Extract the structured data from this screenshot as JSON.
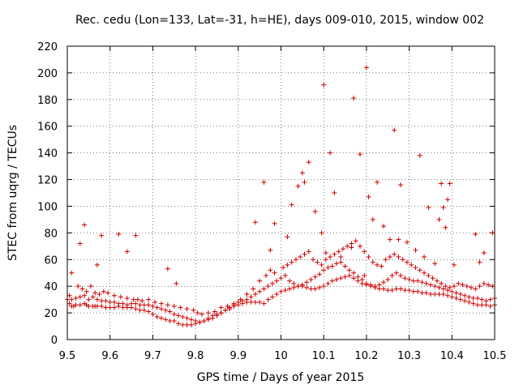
{
  "chart_data": {
    "type": "scatter",
    "title": "Rec. cedu (Lon=133, Lat=-31, h=HE), days 009-010, 2015, window 002",
    "xlabel": "GPS time / Days of year 2015",
    "ylabel": "STEC from uqrg / TECUs",
    "xlim": [
      9.5,
      10.5
    ],
    "ylim": [
      0,
      220
    ],
    "xticks": [
      9.5,
      9.6,
      9.7,
      9.8,
      9.9,
      10,
      10.1,
      10.2,
      10.3,
      10.4,
      10.5
    ],
    "xtick_labels": [
      "9.5",
      "9.6",
      "9.7",
      "9.8",
      "9.9",
      "10",
      "10.1",
      "10.2",
      "10.3",
      "10.4",
      "10.5"
    ],
    "yticks": [
      0,
      20,
      40,
      60,
      80,
      100,
      120,
      140,
      160,
      180,
      200,
      220
    ],
    "ytick_labels": [
      "0",
      "20",
      "40",
      "60",
      "80",
      "100",
      "120",
      "140",
      "160",
      "180",
      "200",
      "220"
    ],
    "grid": true,
    "marker": "+",
    "color": "#cc0000",
    "series": [
      {
        "name": "STEC",
        "x": [
          9.5,
          9.505,
          9.51,
          9.515,
          9.52,
          9.53,
          9.54,
          9.545,
          9.55,
          9.56,
          9.565,
          9.57,
          9.58,
          9.59,
          9.6,
          9.61,
          9.62,
          9.63,
          9.64,
          9.65,
          9.66,
          9.67,
          9.68,
          9.69,
          9.7,
          9.71,
          9.72,
          9.73,
          9.74,
          9.75,
          9.76,
          9.77,
          9.78,
          9.79,
          9.8,
          9.81,
          9.82,
          9.83,
          9.84,
          9.85,
          9.86,
          9.87,
          9.88,
          9.89,
          9.9,
          9.91,
          9.92,
          9.93,
          9.94,
          9.95,
          9.96,
          9.97,
          9.98,
          9.99,
          10.0,
          10.01,
          10.02,
          10.03,
          10.04,
          10.05,
          10.06,
          10.07,
          10.08,
          10.09,
          10.1,
          10.11,
          10.12,
          10.13,
          10.14,
          10.15,
          10.16,
          10.17,
          10.18,
          10.19,
          10.2,
          10.21,
          10.22,
          10.23,
          10.24,
          10.25,
          10.26,
          10.27,
          10.28,
          10.29,
          10.3,
          10.31,
          10.32,
          10.33,
          10.34,
          10.35,
          10.36,
          10.37,
          10.38,
          10.39,
          10.4,
          10.41,
          10.42,
          10.43,
          10.44,
          10.45,
          10.46,
          10.47,
          10.48,
          10.49,
          10.5,
          9.505,
          9.51,
          9.52,
          9.53,
          9.54,
          9.55,
          9.56,
          9.57,
          9.58,
          9.59,
          9.6,
          9.61,
          9.62,
          9.63,
          9.64,
          9.65,
          9.66,
          9.67,
          9.68,
          9.69,
          9.7,
          9.71,
          9.72,
          9.73,
          9.74,
          9.75,
          9.76,
          9.77,
          9.78,
          9.79,
          9.8,
          9.81,
          9.82,
          9.83,
          9.84,
          9.85,
          9.86,
          9.87,
          9.88,
          9.89,
          9.9,
          9.91,
          9.92,
          9.93,
          9.94,
          9.95,
          9.96,
          9.97,
          9.98,
          9.99,
          10.0,
          10.01,
          10.02,
          10.03,
          10.04,
          10.05,
          10.06,
          10.07,
          10.08,
          10.09,
          10.1,
          10.11,
          10.12,
          10.13,
          10.14,
          10.15,
          10.16,
          10.17,
          10.18,
          10.19,
          10.2,
          10.21,
          10.22,
          10.23,
          10.24,
          10.25,
          10.26,
          10.27,
          10.28,
          10.29,
          10.3,
          10.31,
          10.32,
          10.33,
          10.34,
          10.35,
          10.36,
          10.37,
          10.38,
          10.39,
          10.4,
          10.41,
          10.42,
          10.43,
          10.44,
          10.45,
          10.46,
          10.47,
          10.48,
          10.49,
          10.5,
          9.51,
          9.525,
          9.535,
          9.545,
          9.555,
          9.565,
          9.575,
          9.585,
          9.595,
          9.61,
          9.625,
          9.64,
          9.655,
          9.665,
          9.675,
          9.69,
          9.705,
          9.72,
          9.735,
          9.75,
          9.765,
          9.78,
          9.795,
          9.805,
          9.815,
          9.83,
          9.845,
          9.86,
          9.875,
          9.89,
          9.905,
          9.92,
          9.935,
          9.95,
          9.965,
          9.975,
          9.985,
          10.005,
          10.015,
          10.025,
          10.035,
          10.045,
          10.055,
          10.065,
          10.075,
          10.085,
          10.095,
          10.105,
          10.115,
          10.125,
          10.135,
          10.145,
          10.155,
          10.165,
          10.175,
          10.185,
          10.195,
          10.205,
          10.215,
          10.225,
          10.235,
          10.245,
          10.255,
          10.265,
          10.275,
          10.285,
          10.295,
          10.305,
          10.315,
          10.325,
          10.335,
          10.345,
          10.355,
          10.365,
          10.375,
          10.385,
          10.395,
          10.405,
          10.415,
          10.425,
          10.435,
          10.445,
          10.455,
          10.465,
          10.475,
          10.485,
          10.495,
          9.53,
          9.54,
          9.57,
          9.58,
          9.62,
          9.64,
          9.66,
          9.735,
          9.755,
          9.94,
          9.96,
          9.975,
          9.985,
          10.015,
          10.025,
          10.04,
          10.05,
          10.055,
          10.065,
          10.08,
          10.095,
          10.1,
          10.105,
          10.115,
          10.125,
          10.14,
          10.165,
          10.17,
          10.185,
          10.195,
          10.2,
          10.205,
          10.215,
          10.225,
          10.24,
          10.255,
          10.265,
          10.275,
          10.28,
          10.295,
          10.315,
          10.325,
          10.335,
          10.345,
          10.36,
          10.37,
          10.375,
          10.38,
          10.385,
          10.39,
          10.395,
          10.405,
          10.455,
          10.465,
          10.475,
          10.495
        ],
        "y": [
          30,
          27,
          25,
          25,
          26,
          26,
          27,
          26,
          25,
          25,
          25,
          25,
          25,
          24,
          24,
          24,
          25,
          24,
          24,
          24,
          23,
          22,
          22,
          21,
          19,
          17,
          16,
          15,
          14,
          14,
          12,
          11,
          11,
          11,
          12,
          13,
          14,
          15,
          16,
          18,
          20,
          22,
          23,
          25,
          26,
          27,
          28,
          28,
          28,
          28,
          27,
          30,
          32,
          34,
          36,
          37,
          38,
          39,
          40,
          40,
          39,
          38,
          38,
          39,
          40,
          42,
          44,
          45,
          46,
          47,
          48,
          46,
          44,
          42,
          41,
          40,
          39,
          38,
          38,
          37,
          37,
          38,
          38,
          37,
          37,
          36,
          36,
          35,
          35,
          34,
          34,
          34,
          34,
          33,
          32,
          31,
          30,
          29,
          28,
          27,
          26,
          26,
          26,
          25,
          26,
          33,
          30,
          31,
          32,
          33,
          30,
          32,
          30,
          29,
          29,
          28,
          28,
          27,
          27,
          26,
          27,
          27,
          26,
          26,
          26,
          25,
          24,
          23,
          22,
          21,
          19,
          18,
          17,
          16,
          15,
          14,
          13,
          14,
          16,
          18,
          19,
          20,
          22,
          24,
          26,
          28,
          29,
          30,
          32,
          34,
          36,
          38,
          40,
          42,
          44,
          46,
          48,
          44,
          42,
          40,
          41,
          43,
          45,
          47,
          49,
          52,
          54,
          55,
          57,
          58,
          55,
          52,
          50,
          47,
          45,
          42,
          41,
          40,
          41,
          43,
          45,
          48,
          50,
          48,
          46,
          45,
          44,
          44,
          43,
          42,
          41,
          40,
          39,
          38,
          37,
          36,
          35,
          34,
          33,
          32,
          31,
          31,
          30,
          29,
          30,
          31,
          50,
          40,
          38,
          36,
          40,
          35,
          34,
          36,
          35,
          33,
          32,
          31,
          30,
          30,
          29,
          30,
          28,
          27,
          26,
          25,
          24,
          23,
          22,
          20,
          19,
          20,
          21,
          24,
          25,
          27,
          30,
          34,
          38,
          44,
          48,
          52,
          50,
          54,
          56,
          58,
          60,
          62,
          64,
          66,
          60,
          58,
          56,
          60,
          62,
          64,
          66,
          68,
          70,
          72,
          74,
          70,
          66,
          62,
          58,
          56,
          55,
          60,
          62,
          64,
          62,
          60,
          58,
          56,
          54,
          52,
          50,
          48,
          46,
          44,
          42,
          40,
          39,
          40,
          42,
          41,
          40,
          39,
          38,
          40,
          42,
          41,
          40,
          72,
          86,
          56,
          78,
          79,
          66,
          78,
          53,
          42,
          88,
          118,
          67,
          87,
          77,
          101,
          115,
          125,
          118,
          133,
          96,
          80,
          191,
          65,
          140,
          110,
          62,
          69,
          181,
          139,
          48,
          204,
          107,
          90,
          118,
          85,
          75,
          157,
          75,
          116,
          73,
          67,
          138,
          62,
          99,
          57,
          90,
          117,
          99,
          84,
          105,
          117,
          56,
          79,
          58,
          65,
          80
        ]
      }
    ]
  }
}
